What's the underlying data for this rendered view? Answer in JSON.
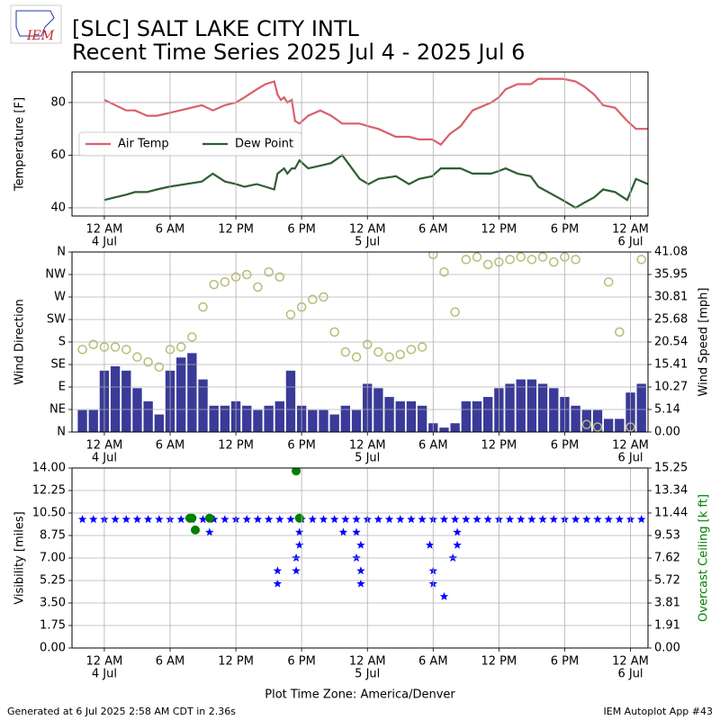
{
  "header": {
    "logo": "IEM",
    "title": "[SLC] SALT LAKE CITY INTL",
    "subtitle": "Recent Time Series 2025 Jul 4 - 2025 Jul 6"
  },
  "footer": {
    "left": "Generated at 6 Jul 2025 2:58 AM CDT in 2.36s",
    "right": "IEM Autoplot App #43"
  },
  "chart_data": [
    {
      "type": "line",
      "ylabel": "Temperature [F]",
      "grid": true,
      "legend": "center left",
      "xlim": [
        -2.95,
        49.6
      ],
      "xticks": [
        {
          "value": 0,
          "label": "12 AM",
          "date": "4 Jul"
        },
        {
          "value": 6,
          "label": "6 AM"
        },
        {
          "value": 12,
          "label": "12 PM"
        },
        {
          "value": 18,
          "label": "6 PM"
        },
        {
          "value": 24,
          "label": "12 AM",
          "date": "5 Jul"
        },
        {
          "value": 30,
          "label": "6 AM"
        },
        {
          "value": 36,
          "label": "12 PM"
        },
        {
          "value": 42,
          "label": "6 PM"
        },
        {
          "value": 48,
          "label": "12 AM",
          "date": "6 Jul"
        }
      ],
      "ylim": [
        36.9,
        91.6
      ],
      "yticks": [
        40,
        60,
        80
      ],
      "x": [
        0,
        2.0,
        2.8,
        3.9,
        4.8,
        5.9,
        8.9,
        9.9,
        11.0,
        12.0,
        12.8,
        13.9,
        14.7,
        15.5,
        15.8,
        16.1,
        16.4,
        16.7,
        17.1,
        17.4,
        17.8,
        18.6,
        19.7,
        20.7,
        21.7,
        23.3,
        24.1,
        25.0,
        26.6,
        27.8,
        28.7,
        29.9,
        30.7,
        31.5,
        32.5,
        33.6,
        35.3,
        36.0,
        36.6,
        37.7,
        38.9,
        39.6,
        41.8,
        43.0,
        43.8,
        44.7,
        45.5,
        46.6,
        47.7,
        48.5,
        49.6
      ],
      "series": [
        {
          "name": "Air Temp",
          "color": "#d9606a",
          "values": [
            81,
            77,
            77,
            75,
            75,
            76,
            79,
            77,
            79,
            80,
            82,
            85,
            87,
            88,
            83,
            81,
            82,
            80,
            81,
            73,
            72,
            75,
            77,
            75,
            72,
            72,
            71,
            70,
            67,
            67,
            66,
            66,
            64,
            68,
            71,
            77,
            80,
            82,
            85,
            87,
            87,
            89,
            89,
            88,
            86,
            83,
            79,
            78,
            73,
            70,
            70
          ]
        },
        {
          "name": "Dew Point",
          "color": "#2f5e33",
          "values": [
            43,
            45,
            46,
            46,
            47,
            48,
            50,
            53,
            50,
            49,
            48,
            49,
            48,
            47,
            53,
            54,
            55,
            53,
            55,
            55,
            58,
            55,
            56,
            57,
            60,
            51,
            49,
            51,
            52,
            49,
            51,
            52,
            55,
            55,
            55,
            53,
            53,
            54,
            55,
            53,
            52,
            48,
            43,
            40,
            42,
            44,
            47,
            46,
            43,
            51,
            49
          ]
        }
      ]
    },
    {
      "type": "combo",
      "ylabel": "Wind Direction",
      "y2label": "Wind Speed [mph]",
      "grid": true,
      "xlim": [
        -2.95,
        49.6
      ],
      "xticks": [
        {
          "value": 0,
          "label": "12 AM",
          "date": "4 Jul"
        },
        {
          "value": 6,
          "label": "6 AM"
        },
        {
          "value": 12,
          "label": "12 PM"
        },
        {
          "value": 18,
          "label": "6 PM"
        },
        {
          "value": 24,
          "label": "12 AM",
          "date": "5 Jul"
        },
        {
          "value": 30,
          "label": "6 AM"
        },
        {
          "value": 36,
          "label": "12 PM"
        },
        {
          "value": 42,
          "label": "6 PM"
        },
        {
          "value": 48,
          "label": "12 AM",
          "date": "6 Jul"
        }
      ],
      "ylim": [
        0,
        360
      ],
      "yticks": [
        {
          "value": 0,
          "label": "N"
        },
        {
          "value": 45,
          "label": "NE"
        },
        {
          "value": 90,
          "label": "E"
        },
        {
          "value": 135,
          "label": "SE"
        },
        {
          "value": 180,
          "label": "S"
        },
        {
          "value": 225,
          "label": "SW"
        },
        {
          "value": 270,
          "label": "W"
        },
        {
          "value": 315,
          "label": "NW"
        },
        {
          "value": 360,
          "label": "N"
        }
      ],
      "y2lim": [
        0,
        41.08
      ],
      "y2ticks": [
        {
          "value": 0,
          "label": "0.00"
        },
        5.14,
        10.27,
        15.41,
        20.54,
        25.68,
        30.81,
        35.95,
        41.08
      ],
      "x": [
        -2,
        -1,
        0,
        1,
        2,
        3,
        4,
        5,
        6,
        7,
        8,
        9,
        10,
        11,
        12,
        13,
        14,
        15,
        16,
        17,
        18,
        19,
        20,
        21,
        22,
        23,
        24,
        25,
        26,
        27,
        28,
        29,
        30,
        31,
        32,
        33,
        34,
        35,
        36,
        37,
        38,
        39,
        40,
        41,
        42,
        43,
        44,
        45,
        46,
        47,
        48,
        49
      ],
      "series": [
        {
          "kind": "bar",
          "axis": "y2",
          "color": "#3a3a98",
          "values": [
            5,
            5,
            14,
            15,
            14,
            10,
            7,
            4,
            14,
            17,
            18,
            12,
            6,
            6,
            7,
            6,
            5,
            6,
            7,
            14,
            6,
            5,
            5,
            4,
            6,
            5,
            11,
            10,
            8,
            7,
            7,
            6,
            2,
            1,
            2,
            7,
            7,
            8,
            10,
            11,
            12,
            12,
            11,
            10,
            8,
            6,
            5,
            5,
            3,
            3,
            9,
            11
          ]
        },
        {
          "kind": "scatter",
          "color": "#b9bb76",
          "values": [
            165,
            175,
            170,
            170,
            165,
            150,
            140,
            130,
            165,
            170,
            190,
            250,
            295,
            300,
            310,
            315,
            290,
            320,
            310,
            235,
            250,
            265,
            270,
            200,
            160,
            150,
            175,
            160,
            150,
            155,
            165,
            170,
            355,
            320,
            240,
            345,
            350,
            335,
            340,
            345,
            350,
            345,
            350,
            340,
            350,
            345,
            15,
            10,
            300,
            200,
            10,
            345
          ]
        }
      ]
    },
    {
      "type": "scatter",
      "ylabel": "Visibility [miles]",
      "y2label": "Overcast Ceiling [k ft]",
      "xlabel": "Plot Time Zone: America/Denver",
      "grid": true,
      "xlim": [
        -2.95,
        49.6
      ],
      "xticks": [
        {
          "value": 0,
          "label": "12 AM",
          "date": "4 Jul"
        },
        {
          "value": 6,
          "label": "6 AM"
        },
        {
          "value": 12,
          "label": "12 PM"
        },
        {
          "value": 18,
          "label": "6 PM"
        },
        {
          "value": 24,
          "label": "12 AM",
          "date": "5 Jul"
        },
        {
          "value": 30,
          "label": "6 AM"
        },
        {
          "value": 36,
          "label": "12 PM"
        },
        {
          "value": 42,
          "label": "6 PM"
        },
        {
          "value": 48,
          "label": "12 AM",
          "date": "6 Jul"
        }
      ],
      "ylim": [
        0,
        14
      ],
      "yticks": [
        {
          "value": 0,
          "label": "0.00"
        },
        1.75,
        {
          "value": 3.5,
          "label": "3.50"
        },
        5.25,
        {
          "value": 7,
          "label": "7.00"
        },
        8.75,
        {
          "value": 10.5,
          "label": "10.50"
        },
        12.25,
        {
          "value": 14,
          "label": "14.00"
        }
      ],
      "y2lim": [
        0,
        15.25
      ],
      "y2ticks": [
        {
          "value": 0,
          "label": "0.00"
        },
        1.91,
        3.81,
        5.72,
        7.62,
        9.53,
        11.44,
        13.34,
        15.25
      ],
      "series": [
        {
          "marker": "star",
          "color": "#0000ff",
          "x": [
            -2,
            -1,
            0,
            1,
            2,
            3,
            4,
            5,
            6,
            7,
            8,
            9,
            10,
            11,
            12,
            13,
            14,
            15,
            16,
            17,
            18,
            19,
            20,
            21,
            22,
            23,
            24,
            25,
            26,
            27,
            28,
            29,
            30,
            31,
            32,
            33,
            34,
            35,
            36,
            37,
            38,
            39,
            40,
            41,
            42,
            43,
            44,
            45,
            46,
            47,
            48,
            49,
            9.6,
            15.8,
            15.8,
            17.5,
            17.5,
            17.8,
            17.8,
            21.8,
            23.0,
            23.0,
            23.4,
            23.4,
            23.4,
            29.7,
            30.0,
            30.0,
            31.0,
            31.8,
            32.2,
            32.2
          ],
          "values": [
            10,
            10,
            10,
            10,
            10,
            10,
            10,
            10,
            10,
            10,
            10,
            10,
            10,
            10,
            10,
            10,
            10,
            10,
            10,
            10,
            10,
            10,
            10,
            10,
            10,
            10,
            10,
            10,
            10,
            10,
            10,
            10,
            10,
            10,
            10,
            10,
            10,
            10,
            10,
            10,
            10,
            10,
            10,
            10,
            10,
            10,
            10,
            10,
            10,
            10,
            10,
            10,
            9,
            6,
            5,
            6,
            7,
            9,
            8,
            9,
            9,
            7,
            6,
            5,
            8,
            8,
            6,
            5,
            4,
            7,
            9,
            8
          ]
        },
        {
          "marker": "circle",
          "color": "#008000",
          "axis": "y2",
          "x": [
            7.8,
            8.0,
            8.3,
            9.6,
            17.5,
            17.8
          ],
          "values": [
            11,
            11,
            10,
            11,
            15,
            11
          ]
        }
      ]
    }
  ]
}
